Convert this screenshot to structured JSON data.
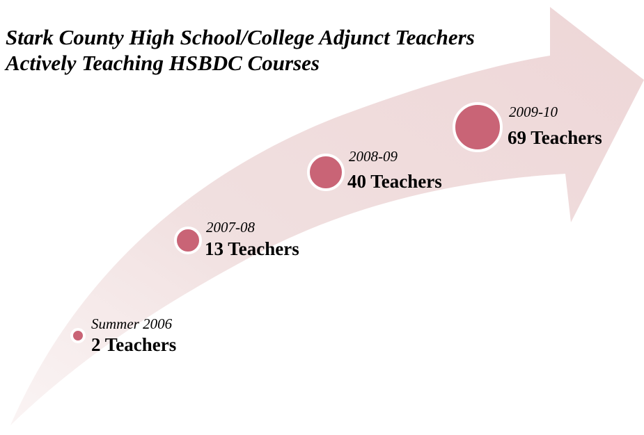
{
  "title": {
    "line1": "Stark County High School/College Adjunct Teachers",
    "line2": "Actively Teaching HSBDC Courses"
  },
  "nodes": [
    {
      "period": "Summer 2006",
      "label": "2 Teachers"
    },
    {
      "period": "2007-08",
      "label": "13 Teachers"
    },
    {
      "period": "2008-09",
      "label": "40 Teachers"
    },
    {
      "period": "2009-10",
      "label": "69 Teachers"
    }
  ]
}
